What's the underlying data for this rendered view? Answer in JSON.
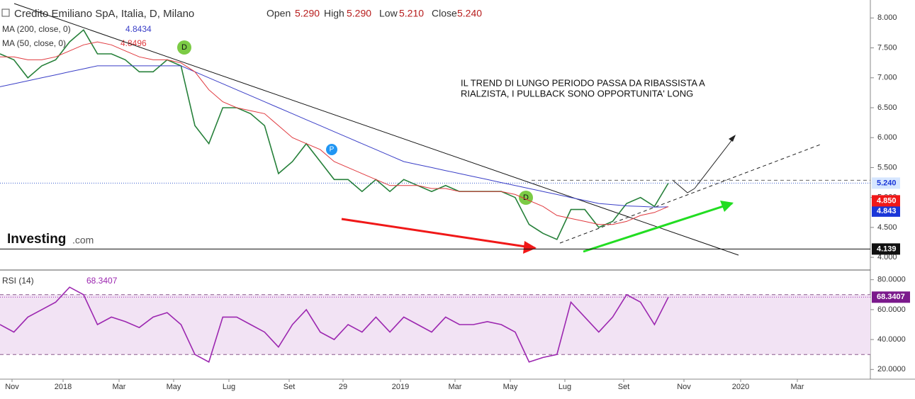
{
  "header": {
    "title": "Credito Emiliano SpA, Italia, D, Milano",
    "open_label": "Open",
    "open": "5.290",
    "high_label": "High",
    "high": "5.290",
    "low_label": "Low",
    "low": "5.210",
    "close_label": "Close",
    "close": "5.240",
    "logo": "Investing",
    "logo_suffix": ".com",
    "annotation_line1": "IL TREND DI LUNGO PERIODO PASSA DA RIBASSISTA A",
    "annotation_line2": "RIALZISTA, I PULLBACK SONO OPPORTUNITA' LONG",
    "markers": [
      "D",
      "P",
      "D"
    ]
  },
  "x_labels": [
    "Nov",
    "2018",
    "Mar",
    "May",
    "Lug",
    "Set",
    "29",
    "2019",
    "Mar",
    "May",
    "Lug",
    "Set",
    "Nov",
    "2020",
    "Mar"
  ],
  "chart_data": [
    {
      "type": "line",
      "ylim": [
        3.8,
        8.3
      ],
      "yticks": [
        {
          "value": 8,
          "label": "8.000"
        },
        {
          "value": 7.5,
          "label": "7.500"
        },
        {
          "value": 7,
          "label": "7.000"
        },
        {
          "value": 6.5,
          "label": "6.500"
        },
        {
          "value": 6,
          "label": "6.000"
        },
        {
          "value": 5.5,
          "label": "5.500"
        },
        {
          "value": 5,
          "label": "5.000"
        },
        {
          "value": 4.5,
          "label": "4.500"
        },
        {
          "value": 4,
          "label": "4.000"
        }
      ],
      "hline": {
        "value": 4.139,
        "label": "4.139"
      },
      "series": [
        {
          "name": "Credito Emiliano SpA",
          "color": "#26803a",
          "last_label": "5.240",
          "tag_color": "#d6e6ff",
          "values": [
            7.4,
            7.3,
            7.0,
            7.2,
            7.3,
            7.6,
            7.8,
            7.4,
            7.4,
            7.3,
            7.1,
            7.1,
            7.3,
            7.2,
            6.2,
            5.9,
            6.5,
            6.5,
            6.4,
            6.2,
            5.4,
            5.6,
            5.9,
            5.6,
            5.3,
            5.3,
            5.1,
            5.3,
            5.1,
            5.3,
            5.2,
            5.1,
            5.2,
            5.1,
            5.1,
            5.1,
            5.1,
            5.0,
            4.55,
            4.4,
            4.3,
            4.8,
            4.8,
            4.5,
            4.6,
            4.9,
            5.0,
            4.85,
            5.24
          ]
        },
        {
          "name": "MA (200, close, 0)",
          "legend_value": "4.8434",
          "color": "#3a3fc7",
          "last_label": "4.843",
          "tag_color": "#1a36d8",
          "values": [
            6.85,
            6.9,
            6.95,
            7.0,
            7.05,
            7.1,
            7.15,
            7.2,
            7.2,
            7.2,
            7.2,
            7.2,
            7.2,
            7.2,
            7.1,
            7.0,
            6.9,
            6.8,
            6.7,
            6.6,
            6.5,
            6.4,
            6.3,
            6.2,
            6.1,
            6.0,
            5.9,
            5.8,
            5.7,
            5.6,
            5.55,
            5.5,
            5.45,
            5.4,
            5.35,
            5.3,
            5.25,
            5.2,
            5.15,
            5.1,
            5.05,
            5.0,
            4.95,
            4.9,
            4.88,
            4.86,
            4.85,
            4.84,
            4.8434
          ]
        },
        {
          "name": "MA (50, close, 0)",
          "legend_value": "4.8496",
          "color": "#e0393e",
          "last_label": "4.850",
          "tag_color": "#f01818",
          "values": [
            7.35,
            7.35,
            7.3,
            7.3,
            7.35,
            7.45,
            7.55,
            7.6,
            7.55,
            7.45,
            7.35,
            7.3,
            7.3,
            7.25,
            7.1,
            6.8,
            6.6,
            6.5,
            6.45,
            6.4,
            6.2,
            6.0,
            5.9,
            5.8,
            5.6,
            5.5,
            5.4,
            5.3,
            5.2,
            5.2,
            5.2,
            5.15,
            5.15,
            5.1,
            5.1,
            5.1,
            5.1,
            5.05,
            4.95,
            4.85,
            4.7,
            4.65,
            4.6,
            4.55,
            4.55,
            4.6,
            4.7,
            4.75,
            4.8496
          ]
        }
      ]
    },
    {
      "type": "line",
      "title": "RSI (14)",
      "ylim": [
        14,
        86
      ],
      "yticks": [
        {
          "value": 80,
          "label": "80.0000"
        },
        {
          "value": 60,
          "label": "60.0000"
        },
        {
          "value": 40,
          "label": "40.0000"
        },
        {
          "value": 20,
          "label": "20.0000"
        }
      ],
      "band": [
        30,
        70
      ],
      "series": [
        {
          "name": "RSI (14)",
          "color": "#9c27b0",
          "last_label": "68.3407",
          "tag_color": "#7b1a8c",
          "values": [
            50,
            45,
            55,
            60,
            65,
            75,
            70,
            50,
            55,
            52,
            48,
            55,
            58,
            50,
            30,
            25,
            55,
            55,
            50,
            45,
            35,
            50,
            60,
            45,
            40,
            50,
            45,
            55,
            45,
            55,
            50,
            45,
            55,
            50,
            50,
            52,
            50,
            45,
            25,
            28,
            30,
            65,
            55,
            45,
            55,
            70,
            65,
            50,
            68.3407
          ]
        }
      ]
    }
  ]
}
